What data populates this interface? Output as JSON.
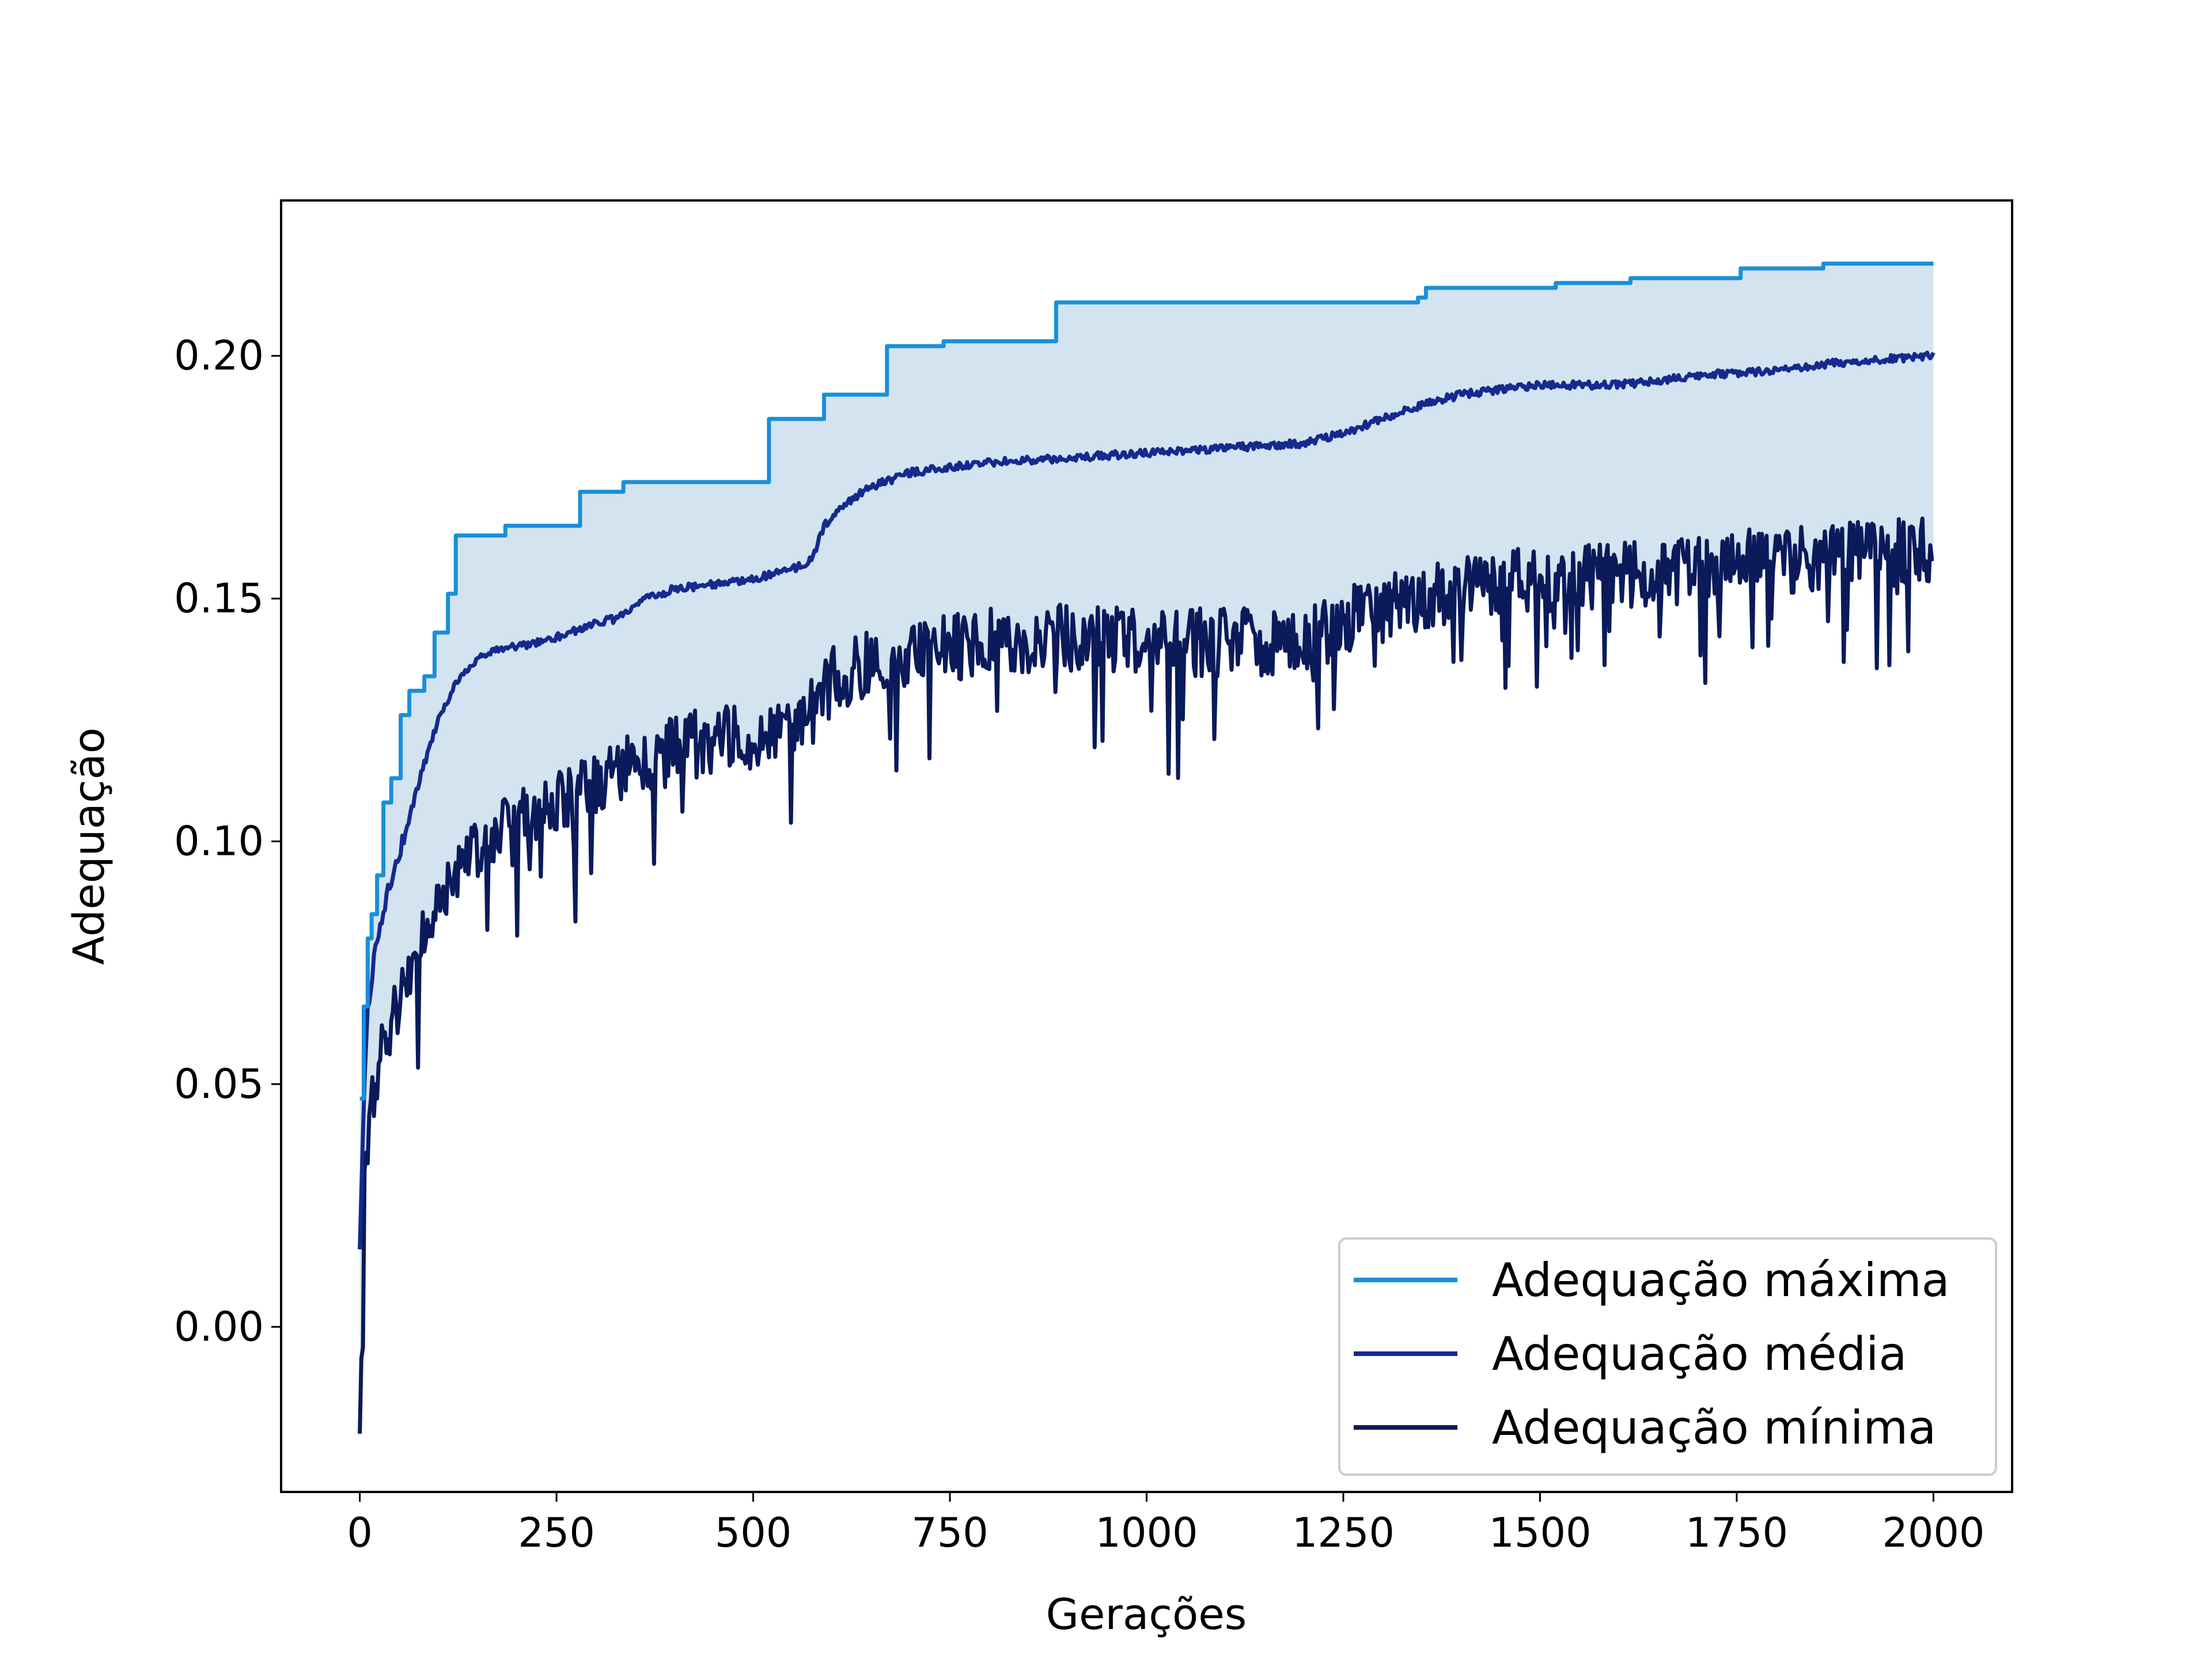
{
  "chart_data": {
    "type": "line",
    "title": "",
    "xlabel": "Gerações",
    "ylabel": "Adequação",
    "xlim": [
      -100,
      2100
    ],
    "ylim": [
      -0.034,
      0.232
    ],
    "xticks": [
      0,
      250,
      500,
      750,
      1000,
      1250,
      1500,
      1750,
      2000
    ],
    "xtick_labels": [
      "0",
      "250",
      "500",
      "750",
      "1000",
      "1250",
      "1500",
      "1750",
      "2000"
    ],
    "yticks": [
      0.0,
      0.05,
      0.1,
      0.15,
      0.2
    ],
    "ytick_labels": [
      "0.00",
      "0.05",
      "0.10",
      "0.15",
      "0.20"
    ],
    "grid": false,
    "legend_position": "lower-right",
    "fill_between": {
      "upper": "Adequação máxima",
      "lower": "Adequação mínima",
      "color": "#d3e3ef"
    },
    "series": [
      {
        "name": "Adequação máxima",
        "color": "#1a8fd8",
        "step": true,
        "x": [
          0,
          5,
          10,
          15,
          22,
          30,
          40,
          52,
          63,
          82,
          95,
          112,
          122,
          185,
          280,
          335,
          520,
          590,
          670,
          742,
          885,
          1345,
          1355,
          1520,
          1615,
          1755,
          1860,
          1960,
          2000
        ],
        "y": [
          0.047,
          0.066,
          0.08,
          0.085,
          0.093,
          0.108,
          0.113,
          0.126,
          0.131,
          0.134,
          0.143,
          0.151,
          0.163,
          0.165,
          0.172,
          0.174,
          0.187,
          0.192,
          0.202,
          0.203,
          0.211,
          0.212,
          0.214,
          0.215,
          0.216,
          0.218,
          0.219,
          0.219,
          0.219
        ]
      },
      {
        "name": "Adequação média",
        "color": "#152a8f",
        "x": [
          0,
          5,
          10,
          20,
          30,
          45,
          60,
          80,
          100,
          120,
          150,
          180,
          200,
          250,
          300,
          330,
          350,
          400,
          450,
          500,
          550,
          575,
          590,
          620,
          650,
          700,
          750,
          800,
          900,
          1000,
          1100,
          1200,
          1250,
          1300,
          1350,
          1400,
          1450,
          1500,
          1600,
          1700,
          1800,
          1900,
          2000
        ],
        "y": [
          0.015,
          0.045,
          0.065,
          0.078,
          0.086,
          0.095,
          0.103,
          0.115,
          0.125,
          0.132,
          0.138,
          0.14,
          0.14,
          0.142,
          0.145,
          0.146,
          0.149,
          0.152,
          0.153,
          0.154,
          0.156,
          0.158,
          0.165,
          0.17,
          0.173,
          0.176,
          0.177,
          0.178,
          0.179,
          0.18,
          0.181,
          0.182,
          0.184,
          0.187,
          0.19,
          0.192,
          0.193,
          0.194,
          0.194,
          0.196,
          0.197,
          0.199,
          0.2
        ]
      },
      {
        "name": "Adequação mínima",
        "color": "#0a1a5a",
        "x": [
          0,
          5,
          10,
          20,
          30,
          45,
          60,
          80,
          100,
          130,
          160,
          200,
          250,
          300,
          350,
          400,
          450,
          500,
          550,
          580,
          600,
          650,
          700,
          750,
          800,
          900,
          1000,
          1100,
          1200,
          1250,
          1300,
          1350,
          1400,
          1500,
          1600,
          1700,
          1800,
          1900,
          2000
        ],
        "y": [
          -0.022,
          0.025,
          0.04,
          0.05,
          0.058,
          0.065,
          0.072,
          0.08,
          0.088,
          0.095,
          0.1,
          0.105,
          0.108,
          0.112,
          0.116,
          0.119,
          0.121,
          0.122,
          0.124,
          0.127,
          0.133,
          0.137,
          0.139,
          0.14,
          0.141,
          0.142,
          0.141,
          0.141,
          0.141,
          0.145,
          0.148,
          0.15,
          0.152,
          0.154,
          0.155,
          0.156,
          0.158,
          0.159,
          0.16
        ]
      }
    ]
  }
}
